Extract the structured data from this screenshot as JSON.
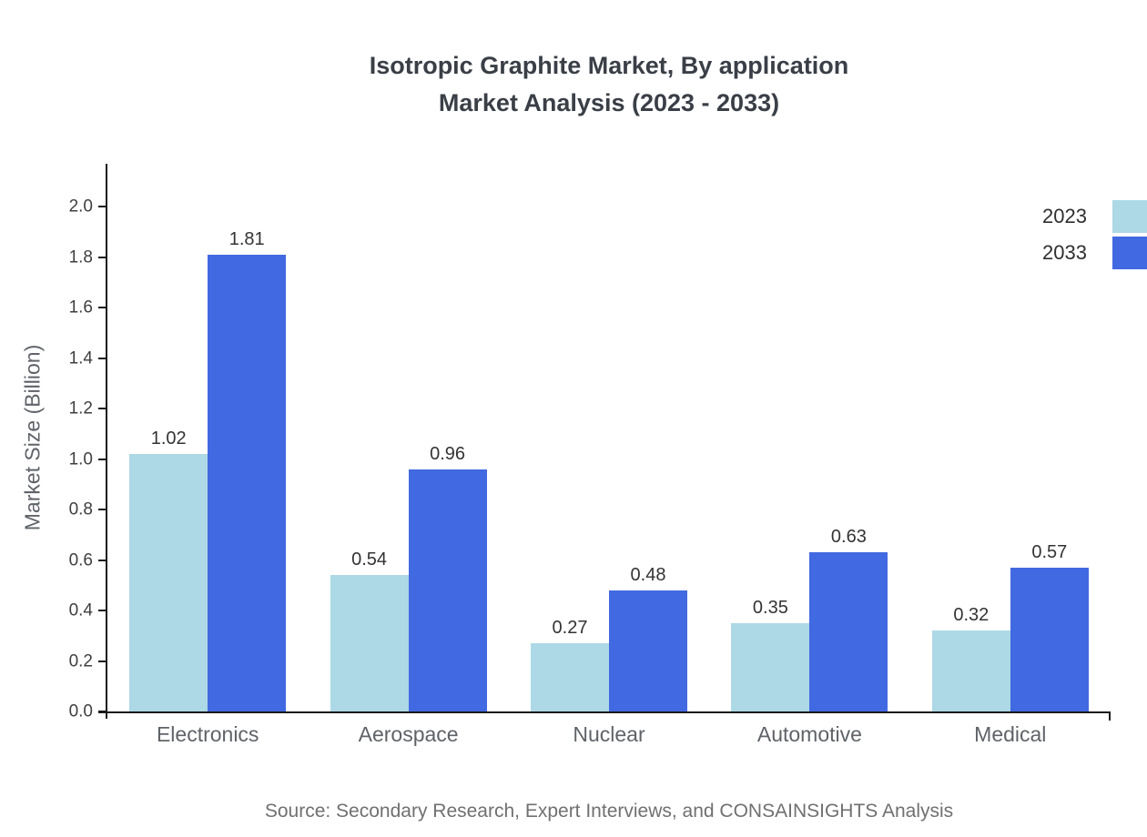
{
  "title": {
    "line1": "Isotropic Graphite Market, By application",
    "line2": "Market Analysis (2023 - 2033)"
  },
  "source": "Source: Secondary Research, Expert Interviews, and CONSAINSIGHTS Analysis",
  "legend": {
    "items": [
      {
        "label": "2023",
        "color": "#add8e6"
      },
      {
        "label": "2033",
        "color": "#4169e1"
      }
    ]
  },
  "chart_data": {
    "type": "bar",
    "title": "Isotropic Graphite Market, By application Market Analysis (2023 - 2033)",
    "categories": [
      "Electronics",
      "Aerospace",
      "Nuclear",
      "Automotive",
      "Medical"
    ],
    "series": [
      {
        "name": "2023",
        "color": "#add8e6",
        "values": [
          1.02,
          0.54,
          0.27,
          0.35,
          0.32
        ]
      },
      {
        "name": "2033",
        "color": "#4169e1",
        "values": [
          1.81,
          0.96,
          0.48,
          0.63,
          0.57
        ]
      }
    ],
    "xlabel": "",
    "ylabel": "Market Size (Billion)",
    "ylim": [
      0,
      2.17
    ],
    "yticks": [
      0.0,
      0.2,
      0.4,
      0.6,
      0.8,
      1.0,
      1.2,
      1.4,
      1.6,
      1.8,
      2.0
    ],
    "grid": false,
    "legend_position": "top-right"
  }
}
